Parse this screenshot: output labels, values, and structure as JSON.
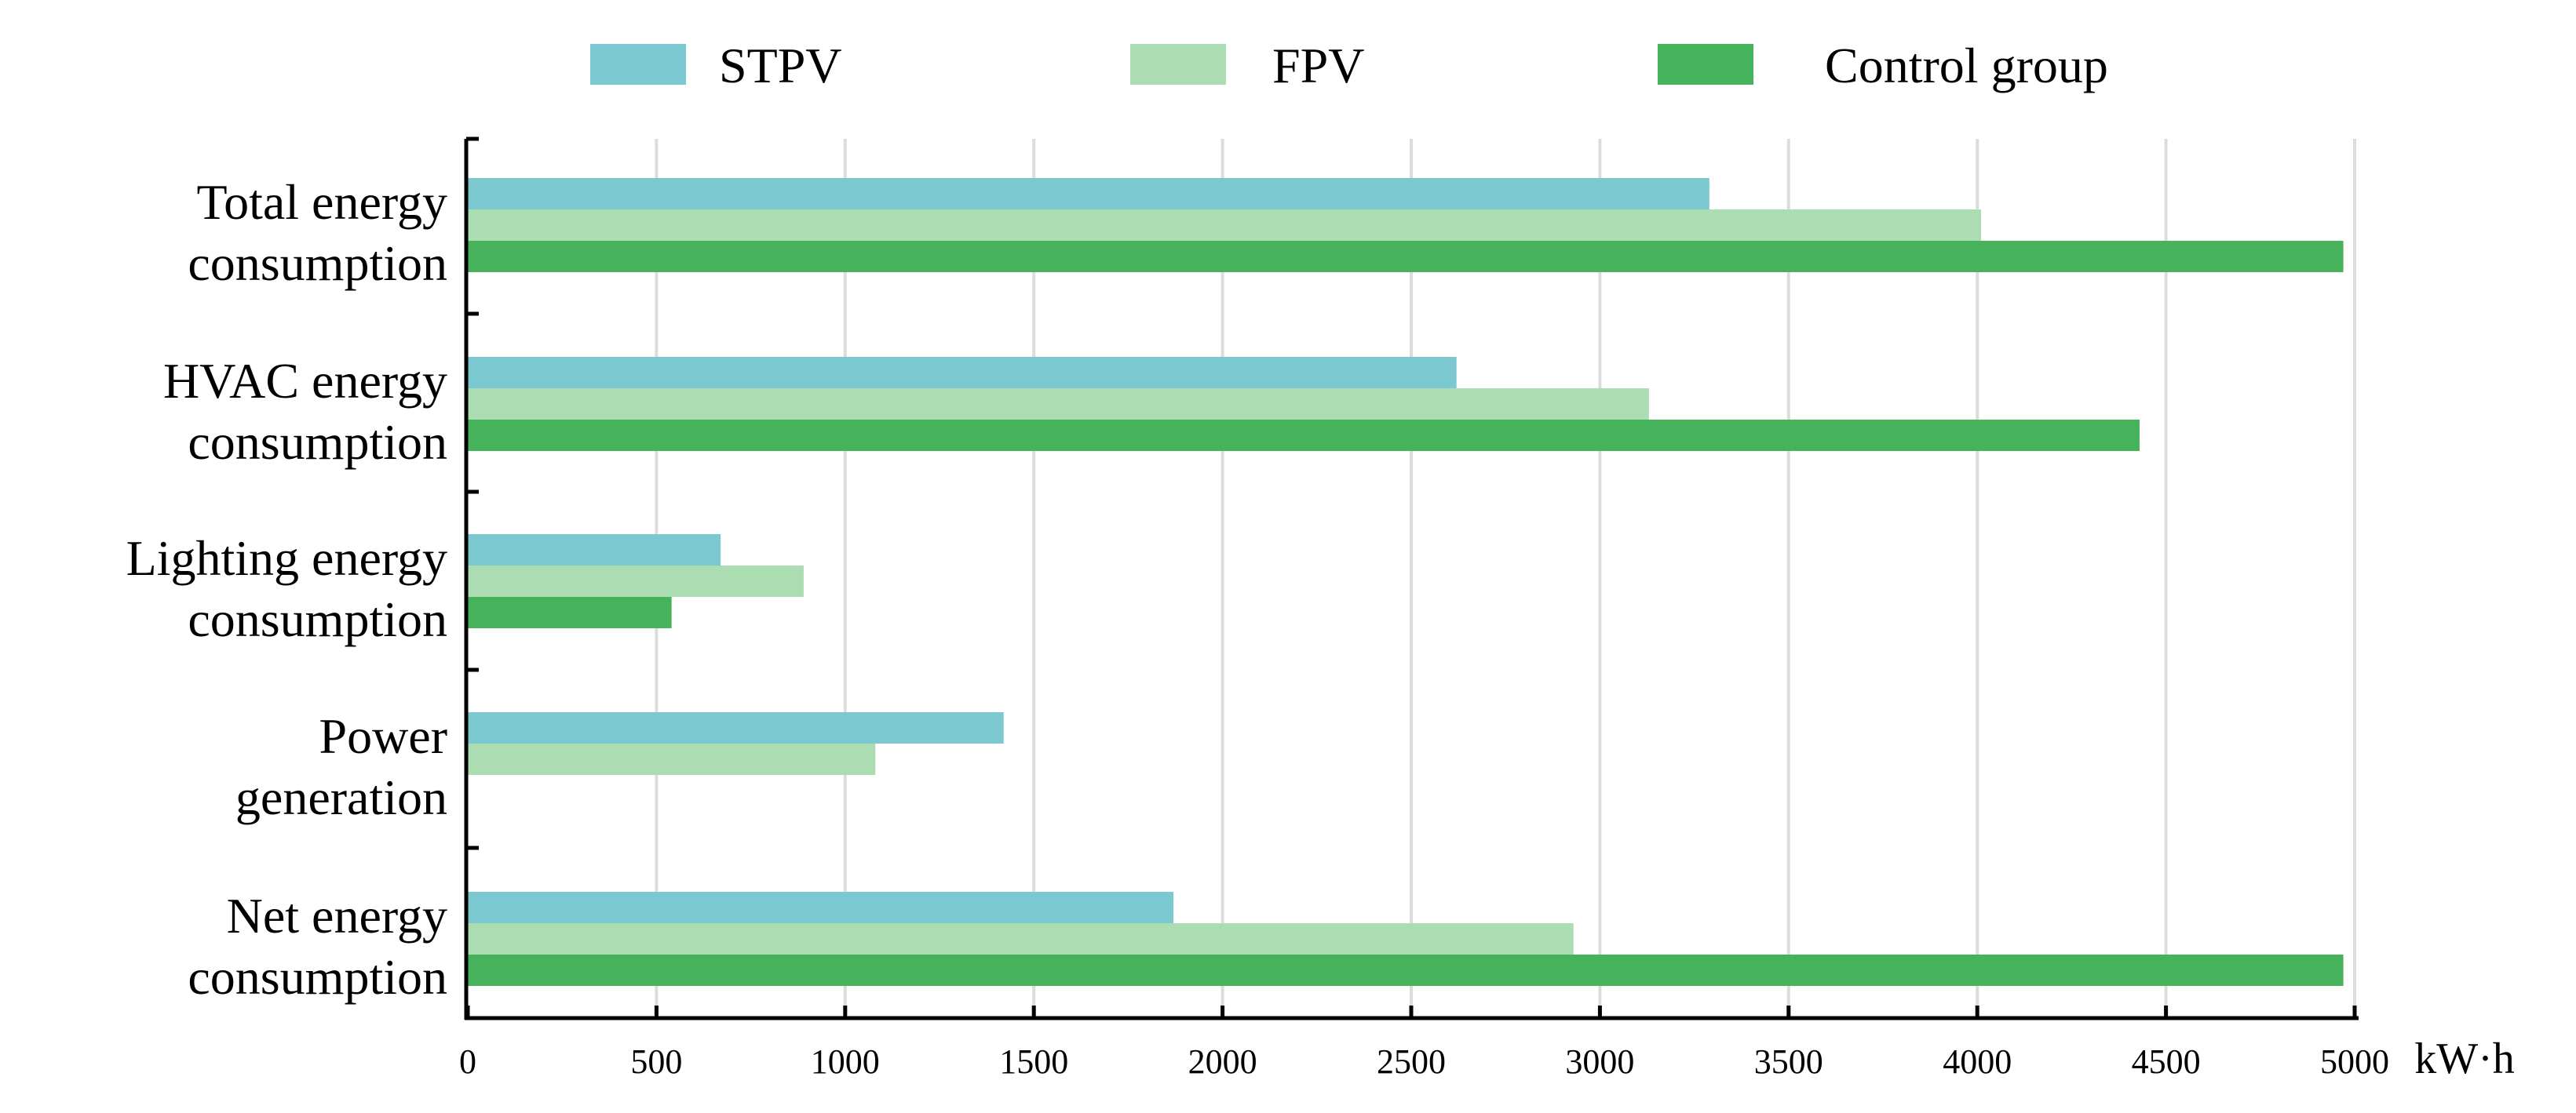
{
  "chart_data": {
    "type": "bar",
    "orientation": "horizontal",
    "title": "",
    "xlabel": "kW·h",
    "ylabel": "",
    "xlim": [
      0,
      5000
    ],
    "x_ticks": [
      "0",
      "500",
      "1000",
      "1500",
      "2000",
      "2500",
      "3000",
      "3500",
      "4000",
      "4500",
      "5000"
    ],
    "grid": true,
    "legend_position": "top",
    "categories": [
      [
        "Total energy",
        "consumption"
      ],
      [
        "HVAC energy",
        "consumption"
      ],
      [
        "Lighting energy",
        "consumption"
      ],
      [
        "Power",
        "generation"
      ],
      [
        "Net energy",
        "consumption"
      ]
    ],
    "series": [
      {
        "name": "STPV",
        "color": "#7cc8d0",
        "values": [
          3290,
          2620,
          670,
          1420,
          1870
        ]
      },
      {
        "name": "FPV",
        "color": "#abdcb2",
        "values": [
          4010,
          3130,
          890,
          1080,
          2930
        ]
      },
      {
        "name": "Control group",
        "color": "#46b35c",
        "values": [
          4970,
          4430,
          540,
          null,
          4970
        ]
      }
    ]
  }
}
